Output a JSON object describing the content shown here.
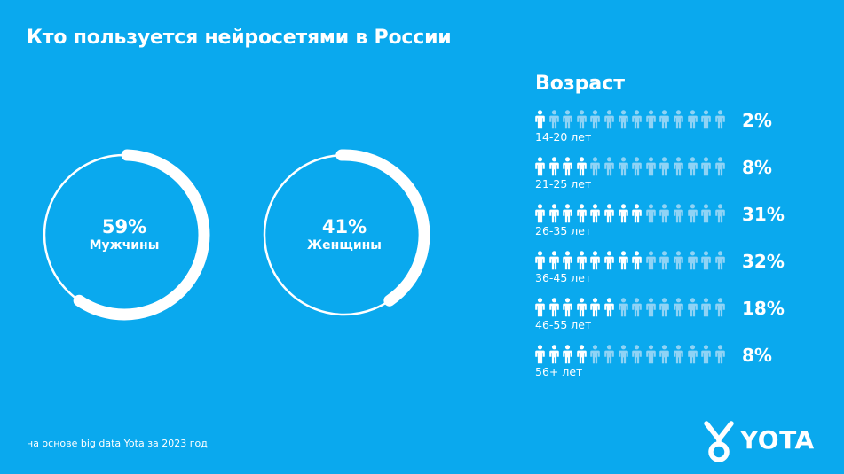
{
  "title": "Кто пользуется нейросетями в России",
  "colors": {
    "background": "#0aa9ee",
    "active": "#ffffff",
    "inactive": "#8fd3f5"
  },
  "chart_data": [
    {
      "type": "pie",
      "title": "",
      "slices": [
        {
          "label": "Мужчины",
          "value": 59,
          "display": "59%"
        },
        {
          "label": "Женщины",
          "value": 41,
          "display": "41%"
        }
      ]
    },
    {
      "type": "bar",
      "title": "Возраст",
      "categories": [
        "14-20 лет",
        "21-25 лет",
        "26-35 лет",
        "36-45 лет",
        "46-55 лет",
        "56+ лет"
      ],
      "values": [
        2,
        8,
        31,
        32,
        18,
        8
      ],
      "value_labels": [
        "2%",
        "8%",
        "31%",
        "32%",
        "18%",
        "8%"
      ],
      "icons_filled": [
        1,
        4,
        8,
        8,
        6,
        4
      ],
      "icons_total": 14
    }
  ],
  "footnote": "на основе big data Yota за 2023 год",
  "logo": {
    "text": "YOTA",
    "icon": "yota-figure-icon"
  }
}
